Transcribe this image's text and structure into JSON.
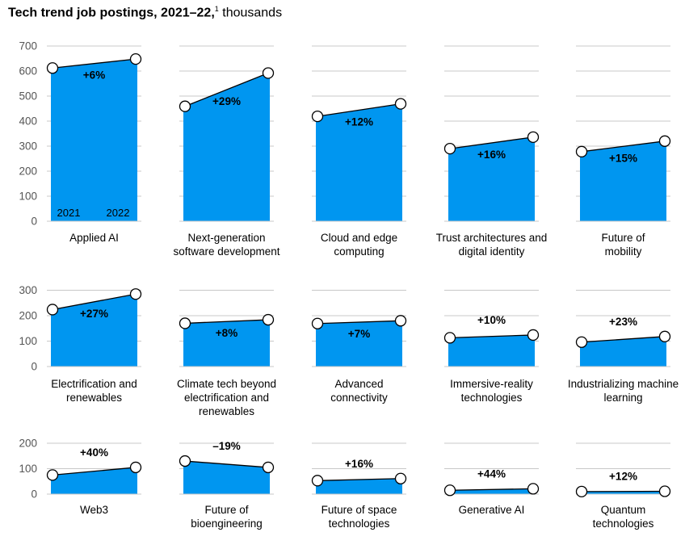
{
  "title": {
    "main": "Tech trend job postings, 2021–22,",
    "footnote_marker": "1",
    "unit": " thousands"
  },
  "colors": {
    "fill": "#0096f0",
    "line": "#000000",
    "grid": "#c8c8c8",
    "axis_text": "#555555"
  },
  "year_labels": [
    "2021",
    "2022"
  ],
  "chart_data": [
    {
      "type": "area",
      "row": 0,
      "ylim": [
        0,
        700
      ],
      "y_ticks": [
        "0",
        "100",
        "200",
        "300",
        "400",
        "500",
        "600",
        "700"
      ],
      "x": [
        "2021",
        "2022"
      ],
      "panels": [
        {
          "label": "Applied AI",
          "values": [
            612,
            648
          ],
          "change": "+6%"
        },
        {
          "label": "Next-generation software development",
          "values": [
            459,
            592
          ],
          "change": "+29%"
        },
        {
          "label": "Cloud and edge computing",
          "values": [
            419,
            469
          ],
          "change": "+12%"
        },
        {
          "label": "Trust architectures and digital identity",
          "values": [
            290,
            336
          ],
          "change": "+16%"
        },
        {
          "label": "Future of mobility",
          "values": [
            278,
            320
          ],
          "change": "+15%"
        }
      ]
    },
    {
      "type": "area",
      "row": 1,
      "ylim": [
        0,
        300
      ],
      "y_ticks": [
        "0",
        "100",
        "200",
        "300"
      ],
      "x": [
        "2021",
        "2022"
      ],
      "panels": [
        {
          "label": "Electrification and renewables",
          "values": [
            224,
            285
          ],
          "change": "+27%"
        },
        {
          "label": "Climate tech beyond electrification and renewables",
          "values": [
            170,
            184
          ],
          "change": "+8%"
        },
        {
          "label": "Advanced connectivity",
          "values": [
            169,
            180
          ],
          "change": "+7%"
        },
        {
          "label": "Immersive-reality technologies",
          "values": [
            113,
            124
          ],
          "change": "+10%"
        },
        {
          "label": "Industrializing machine learning",
          "values": [
            96,
            118
          ],
          "change": "+23%"
        }
      ]
    },
    {
      "type": "area",
      "row": 2,
      "ylim": [
        0,
        200
      ],
      "y_ticks": [
        "0",
        "100",
        "200"
      ],
      "x": [
        "2021",
        "2022"
      ],
      "panels": [
        {
          "label": "Web3",
          "values": [
            75,
            105
          ],
          "change": "+40%"
        },
        {
          "label": "Future of bioengineering",
          "values": [
            130,
            105
          ],
          "change": "–19%"
        },
        {
          "label": "Future of space technologies",
          "values": [
            53,
            61
          ],
          "change": "+16%"
        },
        {
          "label": "Generative AI",
          "values": [
            15,
            21
          ],
          "change": "+44%"
        },
        {
          "label": "Quantum technologies",
          "values": [
            10,
            11
          ],
          "change": "+12%"
        }
      ]
    }
  ]
}
